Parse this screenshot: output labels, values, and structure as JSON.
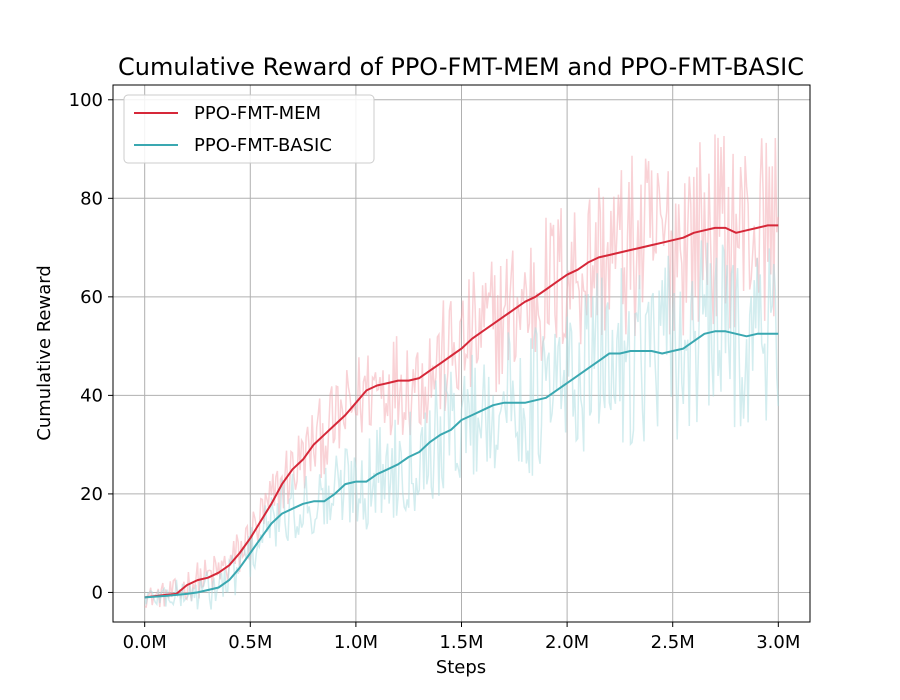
{
  "chart_data": {
    "type": "line",
    "title": "Cumulative Reward of PPO-FMT-MEM and PPO-FMT-BASIC",
    "xlabel": "Steps",
    "ylabel": "Cumulative Reward",
    "xlim": [
      -0.15,
      3.15
    ],
    "ylim": [
      -6,
      103
    ],
    "x_ticks": [
      0.0,
      0.5,
      1.0,
      1.5,
      2.0,
      2.5,
      3.0
    ],
    "x_tick_labels": [
      "0.0M",
      "0.5M",
      "1.0M",
      "1.5M",
      "2.0M",
      "2.5M",
      "3.0M"
    ],
    "y_ticks": [
      0,
      20,
      40,
      60,
      80,
      100
    ],
    "y_tick_labels": [
      "0",
      "20",
      "40",
      "60",
      "80",
      "100"
    ],
    "grid": true,
    "legend_position": "top-left",
    "x_unit": "M steps",
    "series": [
      {
        "name": "PPO-FMT-MEM",
        "color": "#d62839",
        "raw_color": "#f4a6ad",
        "x": [
          0.0,
          0.1,
          0.15,
          0.2,
          0.25,
          0.3,
          0.35,
          0.4,
          0.45,
          0.5,
          0.55,
          0.6,
          0.65,
          0.7,
          0.75,
          0.8,
          0.85,
          0.9,
          0.95,
          1.0,
          1.05,
          1.1,
          1.15,
          1.2,
          1.25,
          1.3,
          1.35,
          1.4,
          1.45,
          1.5,
          1.55,
          1.6,
          1.65,
          1.7,
          1.75,
          1.8,
          1.85,
          1.9,
          1.95,
          2.0,
          2.05,
          2.1,
          2.15,
          2.2,
          2.25,
          2.3,
          2.35,
          2.4,
          2.45,
          2.5,
          2.55,
          2.6,
          2.65,
          2.7,
          2.75,
          2.8,
          2.85,
          2.9,
          2.95,
          3.0
        ],
        "values": [
          -1.0,
          -0.5,
          -0.3,
          1.5,
          2.5,
          3.0,
          4.0,
          5.5,
          8.0,
          11.0,
          14.5,
          18.0,
          22.0,
          25.0,
          27.0,
          30.0,
          32.0,
          34.0,
          36.0,
          38.5,
          41.0,
          42.0,
          42.5,
          43.0,
          43.0,
          43.5,
          45.0,
          46.5,
          48.0,
          49.5,
          51.5,
          53.0,
          54.5,
          56.0,
          57.5,
          59.0,
          60.0,
          61.5,
          63.0,
          64.5,
          65.5,
          67.0,
          68.0,
          68.5,
          69.0,
          69.5,
          70.0,
          70.5,
          71.0,
          71.5,
          72.0,
          73.0,
          73.5,
          74.0,
          74.0,
          73.0,
          73.5,
          74.0,
          74.5,
          74.5
        ]
      },
      {
        "name": "PPO-FMT-BASIC",
        "color": "#3aa8b1",
        "raw_color": "#a8dce0",
        "x": [
          0.0,
          0.1,
          0.15,
          0.2,
          0.25,
          0.3,
          0.35,
          0.4,
          0.45,
          0.5,
          0.55,
          0.6,
          0.65,
          0.7,
          0.75,
          0.8,
          0.85,
          0.9,
          0.95,
          1.0,
          1.05,
          1.1,
          1.15,
          1.2,
          1.25,
          1.3,
          1.35,
          1.4,
          1.45,
          1.5,
          1.55,
          1.6,
          1.65,
          1.7,
          1.75,
          1.8,
          1.85,
          1.9,
          1.95,
          2.0,
          2.05,
          2.1,
          2.15,
          2.2,
          2.25,
          2.3,
          2.35,
          2.4,
          2.45,
          2.5,
          2.55,
          2.6,
          2.65,
          2.7,
          2.75,
          2.8,
          2.85,
          2.9,
          2.95,
          3.0
        ],
        "values": [
          -1.0,
          -0.7,
          -0.5,
          -0.3,
          0.0,
          0.5,
          1.0,
          2.5,
          5.0,
          8.0,
          11.0,
          14.0,
          16.0,
          17.0,
          18.0,
          18.5,
          18.5,
          20.0,
          22.0,
          22.5,
          22.5,
          24.0,
          25.0,
          26.0,
          27.5,
          28.5,
          30.5,
          32.0,
          33.0,
          35.0,
          36.0,
          37.0,
          38.0,
          38.5,
          38.5,
          38.5,
          39.0,
          39.5,
          41.0,
          42.5,
          44.0,
          45.5,
          47.0,
          48.5,
          48.5,
          49.0,
          49.0,
          49.0,
          48.5,
          49.0,
          49.5,
          51.0,
          52.5,
          53.0,
          53.0,
          52.5,
          52.0,
          52.5,
          52.5,
          52.5
        ]
      }
    ]
  }
}
